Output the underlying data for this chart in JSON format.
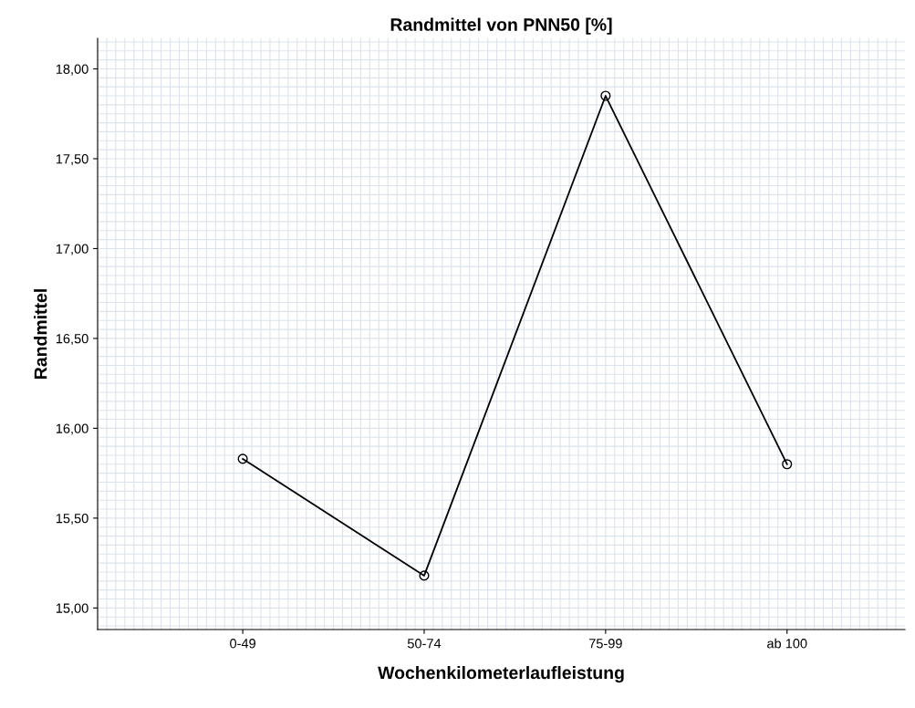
{
  "chart_data": {
    "type": "line",
    "title": "Randmittel von PNN50 [%]",
    "xlabel": "Wochenkilometerlaufleistung",
    "ylabel": "Randmittel",
    "categories": [
      "0-49",
      "50-74",
      "75-99",
      "ab 100"
    ],
    "series": [
      {
        "color": "#000000",
        "values": [
          15.83,
          15.18,
          17.85,
          15.8
        ]
      }
    ],
    "ylim": [
      14.88,
      18.17
    ],
    "yticks": [
      {
        "value": 15,
        "label": "15,00"
      },
      {
        "value": 15.5,
        "label": "15,50"
      },
      {
        "value": 16,
        "label": "16,00"
      },
      {
        "value": 16.5,
        "label": "16,50"
      },
      {
        "value": 17,
        "label": "17,00"
      },
      {
        "value": 17.5,
        "label": "17,50"
      },
      {
        "value": 18,
        "label": "18,00"
      }
    ],
    "grid": true,
    "marker": "circle",
    "line_style": "solid"
  }
}
